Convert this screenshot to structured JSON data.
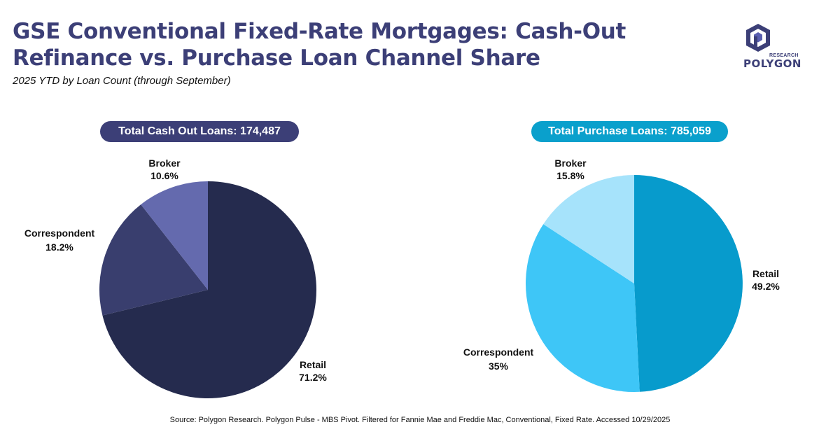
{
  "header": {
    "title": "GSE Conventional Fixed-Rate Mortgages: Cash-Out Refinance vs. Purchase Loan Channel Share",
    "subtitle": "2025 YTD by Loan Count (through September)"
  },
  "logo": {
    "research": "RESEARCH",
    "name": "POLYGON",
    "color": "#3c3f77"
  },
  "chart_data": [
    {
      "type": "pie",
      "title": "Total Cash Out Loans: 174,487",
      "slices": [
        {
          "name": "Retail",
          "value": 71.2,
          "label": "71.2%",
          "color": "#252b4e"
        },
        {
          "name": "Correspondent",
          "value": 18.2,
          "label": "18.2%",
          "color": "#393e6e"
        },
        {
          "name": "Broker",
          "value": 10.6,
          "label": "10.6%",
          "color": "#646aae"
        }
      ]
    },
    {
      "type": "pie",
      "title": "Total Purchase Loans: 785,059",
      "slices": [
        {
          "name": "Retail",
          "value": 49.2,
          "label": "49.2%",
          "color": "#079bcc"
        },
        {
          "name": "Correspondent",
          "value": 35,
          "label": "35%",
          "color": "#3ec6f7"
        },
        {
          "name": "Broker",
          "value": 15.8,
          "label": "15.8%",
          "color": "#a6e3fb"
        }
      ]
    }
  ],
  "footer": {
    "source": "Source: Polygon Research. Polygon Pulse - MBS Pivot. Filtered for Fannie Mae and Freddie Mac, Conventional, Fixed Rate. Accessed 10/29/2025"
  }
}
